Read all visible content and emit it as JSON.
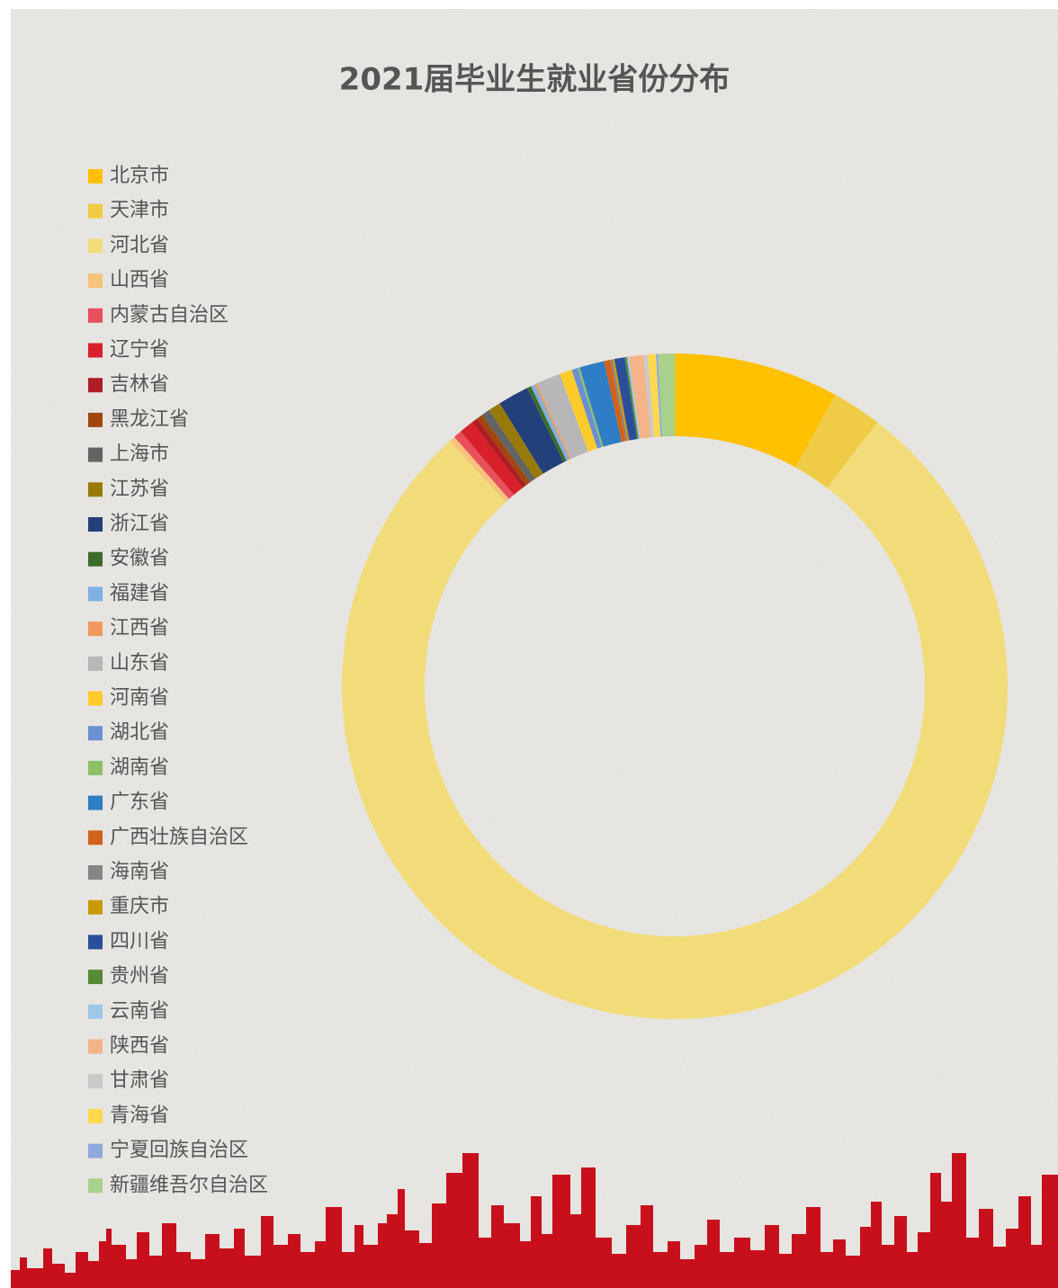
{
  "chart_data": {
    "type": "donut",
    "title": "2021届毕业生就业省份分布",
    "categories": [
      "北京市",
      "天津市",
      "河北省",
      "山西省",
      "内蒙古自治区",
      "辽宁省",
      "吉林省",
      "黑龙江省",
      "上海市",
      "江苏省",
      "浙江省",
      "安徽省",
      "福建省",
      "江西省",
      "山东省",
      "河南省",
      "湖北省",
      "湖南省",
      "广东省",
      "广西壮族自治区",
      "海南省",
      "重庆市",
      "四川省",
      "贵州省",
      "云南省",
      "陕西省",
      "甘肃省",
      "青海省",
      "宁夏回族自治区",
      "新疆维吾尔自治区"
    ],
    "values": [
      8,
      2.4,
      77.6,
      0.3,
      0.4,
      0.7,
      0.3,
      0.3,
      0.4,
      0.6,
      1.5,
      0.2,
      0.2,
      0.1,
      1.2,
      0.6,
      0.3,
      0.1,
      1.2,
      0.3,
      0.1,
      0.1,
      0.5,
      0.1,
      0.1,
      0.7,
      0.2,
      0.4,
      0.1,
      0.8
    ],
    "colors": [
      "#ffc000",
      "#f0cb45",
      "#f2dc7a",
      "#f7c27c",
      "#e8505b",
      "#d7202b",
      "#b01c24",
      "#a0460e",
      "#636363",
      "#977a0a",
      "#23407a",
      "#3d6b2b",
      "#7eb1e0",
      "#f3985c",
      "#b7b7b7",
      "#ffcb2b",
      "#6a90d3",
      "#8cc168",
      "#2f7dc5",
      "#d2621a",
      "#858585",
      "#c99a05",
      "#2b4e9c",
      "#568a34",
      "#9ec7ea",
      "#f5b38a",
      "#c9c9c9",
      "#ffd84f",
      "#8fa9dc",
      "#a9d18e"
    ],
    "legend": "left"
  }
}
